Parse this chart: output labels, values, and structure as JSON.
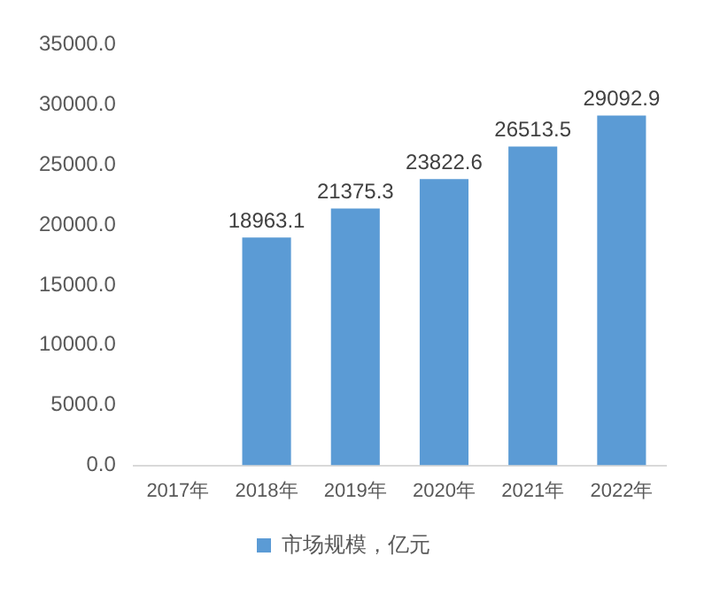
{
  "chart_data": {
    "type": "bar",
    "categories": [
      "2017年",
      "2018年",
      "2019年",
      "2020年",
      "2021年",
      "2022年"
    ],
    "series": [
      {
        "name": "市场规模，亿元",
        "color": "#5b9bd5",
        "values": [
          null,
          18963.1,
          21375.3,
          23822.6,
          26513.5,
          29092.9
        ]
      }
    ],
    "ylim": [
      0,
      35000
    ],
    "yticks": [
      {
        "value": 0,
        "label": "0.0"
      },
      {
        "value": 5000,
        "label": "5000.0"
      },
      {
        "value": 10000,
        "label": "10000.0"
      },
      {
        "value": 15000,
        "label": "15000.0"
      },
      {
        "value": 20000,
        "label": "20000.0"
      },
      {
        "value": 25000,
        "label": "25000.0"
      },
      {
        "value": 30000,
        "label": "30000.0"
      },
      {
        "value": 35000,
        "label": "35000.0"
      }
    ],
    "grid": false,
    "legend": "bottom",
    "data_labels": true
  }
}
